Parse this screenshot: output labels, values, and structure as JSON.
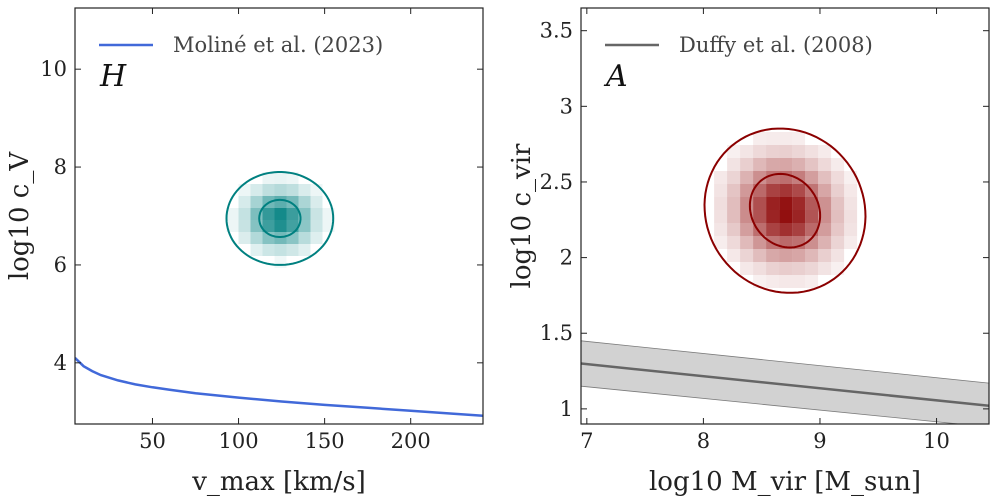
{
  "chart_data": [
    {
      "type": "scatter",
      "xlabel": "v_max [km/s]",
      "ylabel": "log10 c_V",
      "xlim": [
        5,
        242
      ],
      "ylim": [
        2.75,
        11.25
      ],
      "xticks": [
        50,
        100,
        150,
        200
      ],
      "yticks": [
        4,
        6,
        8,
        10
      ],
      "panel_label": "H",
      "legend": {
        "placement": "top-left",
        "entries": [
          {
            "name": "Moliné et al. (2023)",
            "color": "#4169d9"
          }
        ]
      },
      "line": {
        "name": "Moliné et al. (2023)",
        "color": "#4169d9",
        "x": [
          5,
          10,
          15,
          20,
          30,
          40,
          50,
          60,
          75,
          100,
          125,
          150,
          175,
          200,
          225,
          242
        ],
        "y": [
          4.1,
          3.93,
          3.83,
          3.75,
          3.64,
          3.56,
          3.5,
          3.45,
          3.38,
          3.29,
          3.21,
          3.14,
          3.08,
          3.02,
          2.96,
          2.92
        ]
      },
      "density": {
        "color": "#008080",
        "center": [
          124,
          6.95
        ],
        "outer_contour": {
          "x_radius": 31,
          "y_radius": 0.95
        },
        "inner_contour": {
          "x_radius": 12,
          "y_radius": 0.38
        }
      }
    },
    {
      "type": "scatter",
      "xlabel": "log10 M_vir [M_sun]",
      "ylabel": "log10 c_vir",
      "xlim": [
        6.95,
        10.45
      ],
      "ylim": [
        0.9,
        3.65
      ],
      "xticks": [
        7,
        8,
        9,
        10
      ],
      "yticks": [
        1.0,
        1.5,
        2.0,
        2.5,
        3.0,
        3.5
      ],
      "panel_label": "A",
      "legend": {
        "placement": "top-left",
        "entries": [
          {
            "name": "Duffy et al. (2008)",
            "color": "#666666"
          }
        ]
      },
      "line": {
        "name": "Duffy et al. (2008)",
        "color": "#666666",
        "x": [
          6.95,
          10.45
        ],
        "y": [
          1.3,
          1.02
        ]
      },
      "band": {
        "x": [
          6.95,
          10.45
        ],
        "y_low": [
          1.15,
          0.88
        ],
        "y_high": [
          1.45,
          1.17
        ]
      },
      "density": {
        "color": "#8b0000",
        "center": [
          8.7,
          2.31
        ],
        "outer_contour": {
          "x_radius": 0.72,
          "y_radius": 0.52
        },
        "inner_contour": {
          "x_radius": 0.33,
          "y_radius": 0.22
        }
      }
    }
  ]
}
